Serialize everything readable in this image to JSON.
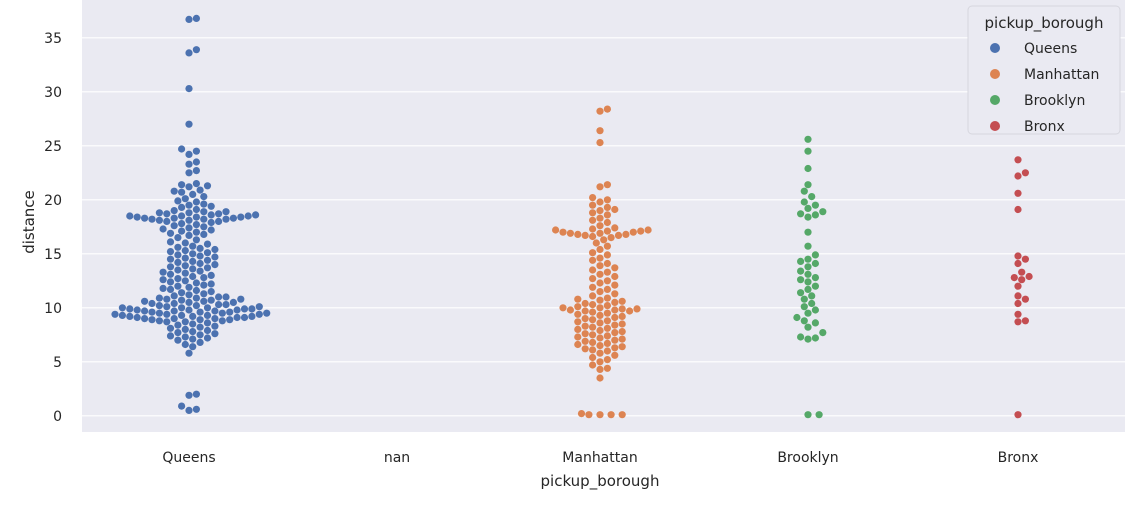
{
  "chart_data": {
    "type": "scatter",
    "subtype": "swarm",
    "xlabel": "pickup_borough",
    "ylabel": "distance",
    "categories": [
      "Queens",
      "nan",
      "Manhattan",
      "Brooklyn",
      "Bronx"
    ],
    "ylim": [
      -1.5,
      38.5
    ],
    "yticks": [
      0,
      5,
      10,
      15,
      20,
      25,
      30,
      35
    ],
    "grid": true,
    "background": "#eaeaf2",
    "legend": {
      "title": "pickup_borough",
      "position": "top-right",
      "entries": [
        "Queens",
        "Manhattan",
        "Brooklyn",
        "Bronx"
      ]
    },
    "colors": {
      "Queens": "#4c72b0",
      "Manhattan": "#dd8452",
      "Brooklyn": "#55a868",
      "Bronx": "#c44e52"
    },
    "series": [
      {
        "name": "Queens",
        "category": "Queens",
        "values": [
          36.8,
          36.7,
          33.9,
          33.6,
          30.3,
          27.0,
          24.7,
          24.5,
          24.2,
          23.5,
          23.3,
          22.7,
          22.5,
          21.5,
          21.4,
          21.3,
          21.2,
          20.9,
          20.8,
          20.7,
          20.5,
          20.3,
          20.1,
          19.9,
          19.8,
          19.6,
          19.5,
          19.4,
          19.3,
          19.1,
          19.0,
          18.9,
          18.9,
          18.8,
          18.8,
          18.7,
          18.7,
          18.6,
          18.6,
          18.5,
          18.5,
          18.5,
          18.4,
          18.4,
          18.4,
          18.3,
          18.3,
          18.3,
          18.2,
          18.2,
          18.2,
          18.1,
          18.1,
          18.0,
          18.0,
          17.9,
          17.8,
          17.7,
          17.6,
          17.5,
          17.4,
          17.3,
          17.2,
          17.1,
          17.0,
          16.9,
          16.8,
          16.7,
          16.5,
          16.3,
          16.1,
          16.0,
          15.9,
          15.7,
          15.6,
          15.5,
          15.4,
          15.3,
          15.2,
          15.1,
          15.0,
          14.9,
          14.8,
          14.7,
          14.6,
          14.5,
          14.4,
          14.3,
          14.2,
          14.1,
          14.0,
          13.9,
          13.8,
          13.7,
          13.6,
          13.5,
          13.4,
          13.3,
          13.2,
          13.1,
          13.0,
          12.9,
          12.8,
          12.7,
          12.6,
          12.5,
          12.4,
          12.3,
          12.2,
          12.1,
          12.0,
          11.9,
          11.8,
          11.7,
          11.6,
          11.5,
          11.4,
          11.3,
          11.2,
          11.1,
          11.0,
          11.0,
          10.9,
          10.9,
          10.8,
          10.8,
          10.7,
          10.7,
          10.6,
          10.6,
          10.5,
          10.5,
          10.4,
          10.4,
          10.3,
          10.3,
          10.2,
          10.2,
          10.1,
          10.1,
          10.0,
          10.0,
          10.0,
          9.9,
          9.9,
          9.9,
          9.8,
          9.8,
          9.8,
          9.7,
          9.7,
          9.7,
          9.6,
          9.6,
          9.6,
          9.5,
          9.5,
          9.5,
          9.4,
          9.4,
          9.4,
          9.3,
          9.3,
          9.3,
          9.2,
          9.2,
          9.2,
          9.1,
          9.1,
          9.1,
          9.0,
          9.0,
          9.0,
          8.9,
          8.9,
          8.9,
          8.8,
          8.8,
          8.7,
          8.7,
          8.6,
          8.5,
          8.4,
          8.3,
          8.2,
          8.1,
          8.0,
          7.9,
          7.8,
          7.7,
          7.6,
          7.5,
          7.4,
          7.3,
          7.2,
          7.1,
          7.0,
          6.8,
          6.6,
          6.4,
          5.8,
          2.0,
          1.9,
          0.9,
          0.6,
          0.5
        ]
      },
      {
        "name": "Manhattan",
        "category": "Manhattan",
        "values": [
          28.4,
          28.2,
          26.4,
          25.3,
          21.4,
          21.2,
          20.2,
          20.0,
          19.8,
          19.5,
          19.3,
          19.1,
          19.0,
          18.8,
          18.6,
          18.3,
          18.1,
          17.9,
          17.6,
          17.4,
          17.3,
          17.2,
          17.2,
          17.1,
          17.1,
          17.0,
          17.0,
          16.9,
          16.9,
          16.8,
          16.8,
          16.7,
          16.7,
          16.6,
          16.5,
          16.3,
          16.0,
          15.7,
          15.4,
          15.1,
          14.9,
          14.6,
          14.4,
          14.1,
          13.9,
          13.7,
          13.5,
          13.3,
          13.1,
          12.9,
          12.7,
          12.5,
          12.3,
          12.1,
          11.9,
          11.7,
          11.5,
          11.3,
          11.1,
          10.9,
          10.8,
          10.7,
          10.6,
          10.5,
          10.4,
          10.3,
          10.2,
          10.1,
          10.0,
          10.0,
          9.9,
          9.9,
          9.8,
          9.8,
          9.7,
          9.7,
          9.6,
          9.5,
          9.4,
          9.3,
          9.2,
          9.1,
          9.0,
          8.9,
          8.8,
          8.7,
          8.6,
          8.5,
          8.4,
          8.3,
          8.2,
          8.1,
          8.0,
          7.9,
          7.8,
          7.7,
          7.6,
          7.5,
          7.4,
          7.3,
          7.2,
          7.1,
          7.0,
          6.9,
          6.8,
          6.7,
          6.6,
          6.5,
          6.4,
          6.3,
          6.2,
          6.1,
          6.0,
          5.8,
          5.6,
          5.4,
          5.2,
          5.0,
          4.7,
          4.4,
          4.3,
          3.5,
          0.2,
          0.1,
          0.1,
          0.1,
          0.1
        ]
      },
      {
        "name": "Brooklyn",
        "category": "Brooklyn",
        "values": [
          25.6,
          24.5,
          22.9,
          21.4,
          20.8,
          20.3,
          19.8,
          19.5,
          19.2,
          18.9,
          18.7,
          18.6,
          18.4,
          17.0,
          15.7,
          14.9,
          14.5,
          14.3,
          14.1,
          13.8,
          13.4,
          13.1,
          12.8,
          12.6,
          12.4,
          12.0,
          11.7,
          11.4,
          11.1,
          10.8,
          10.4,
          10.1,
          9.8,
          9.5,
          9.1,
          8.8,
          8.6,
          8.2,
          7.7,
          7.3,
          7.2,
          7.1,
          0.1,
          0.1
        ]
      },
      {
        "name": "Bronx",
        "category": "Bronx",
        "values": [
          23.7,
          22.5,
          22.2,
          20.6,
          19.1,
          14.8,
          14.5,
          14.1,
          13.3,
          12.9,
          12.8,
          12.6,
          12.0,
          11.1,
          10.8,
          10.4,
          9.4,
          8.8,
          8.7,
          0.1
        ]
      }
    ]
  }
}
